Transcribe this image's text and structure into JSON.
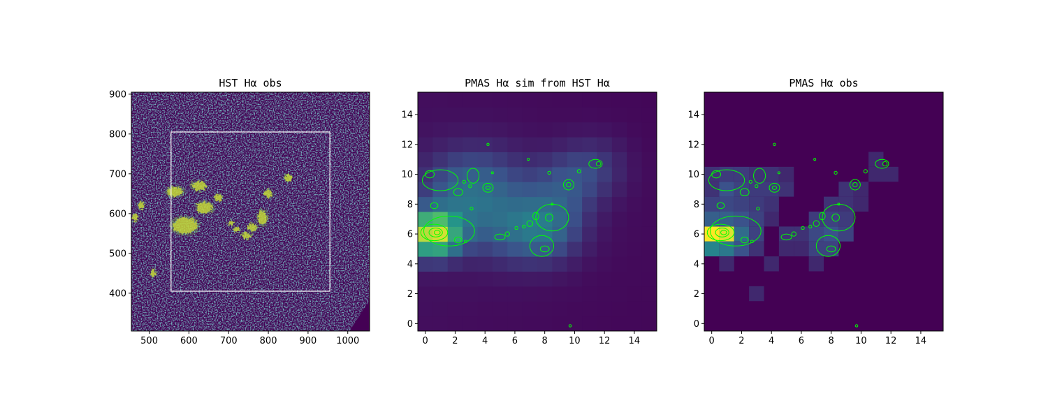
{
  "colors": {
    "colormap": "viridis",
    "contour": "#00ff00",
    "box": "#ffffff",
    "dark": "#440154",
    "bright": "#fde725"
  },
  "chart_data": [
    {
      "type": "heatmap",
      "title": "HST Hα obs",
      "xlim": [
        455,
        1055
      ],
      "ylim": [
        305,
        905
      ],
      "xticks": [
        500,
        600,
        700,
        800,
        900,
        1000
      ],
      "yticks": [
        400,
        500,
        600,
        700,
        800,
        900
      ],
      "overlay_box": {
        "x0": 555,
        "x1": 955,
        "y0": 405,
        "y1": 805
      },
      "bright_regions": [
        {
          "x": 590,
          "y": 570,
          "rx": 38,
          "ry": 25
        },
        {
          "x": 565,
          "y": 655,
          "rx": 25,
          "ry": 15
        },
        {
          "x": 625,
          "y": 670,
          "rx": 22,
          "ry": 14
        },
        {
          "x": 640,
          "y": 615,
          "rx": 24,
          "ry": 18
        },
        {
          "x": 675,
          "y": 640,
          "rx": 12,
          "ry": 10
        },
        {
          "x": 785,
          "y": 590,
          "rx": 15,
          "ry": 22
        },
        {
          "x": 760,
          "y": 565,
          "rx": 14,
          "ry": 12
        },
        {
          "x": 745,
          "y": 545,
          "rx": 14,
          "ry": 10
        },
        {
          "x": 800,
          "y": 650,
          "rx": 12,
          "ry": 12
        },
        {
          "x": 850,
          "y": 690,
          "rx": 12,
          "ry": 10
        },
        {
          "x": 480,
          "y": 620,
          "rx": 10,
          "ry": 12
        },
        {
          "x": 465,
          "y": 590,
          "rx": 8,
          "ry": 12
        },
        {
          "x": 510,
          "y": 450,
          "rx": 8,
          "ry": 12
        },
        {
          "x": 705,
          "y": 575,
          "rx": 10,
          "ry": 7
        },
        {
          "x": 720,
          "y": 560,
          "rx": 10,
          "ry": 7
        }
      ]
    },
    {
      "type": "heatmap",
      "title": "PMAS Hα sim from HST Hα",
      "xlim": [
        -0.5,
        15.5
      ],
      "ylim": [
        -0.5,
        15.5
      ],
      "xticks": [
        0,
        2,
        4,
        6,
        8,
        10,
        12,
        14
      ],
      "yticks": [
        0,
        2,
        4,
        6,
        8,
        10,
        12,
        14
      ],
      "vmax": 1.0,
      "hot_spots": [
        {
          "x": 0.5,
          "y": 6.0,
          "amp": 0.85,
          "sx": 1.2,
          "sy": 1.0
        },
        {
          "x": 2.5,
          "y": 8.5,
          "amp": 0.2,
          "sx": 2.0,
          "sy": 2.0
        },
        {
          "x": 4.5,
          "y": 9.0,
          "amp": 0.15,
          "sx": 2.5,
          "sy": 2.0
        },
        {
          "x": 8.0,
          "y": 6.5,
          "amp": 0.28,
          "sx": 1.8,
          "sy": 1.6
        },
        {
          "x": 9.5,
          "y": 9.5,
          "amp": 0.15,
          "sx": 1.5,
          "sy": 1.5
        },
        {
          "x": 11.5,
          "y": 10.5,
          "amp": 0.12,
          "sx": 1.5,
          "sy": 1.5
        },
        {
          "x": 5.5,
          "y": 6.0,
          "amp": 0.12,
          "sx": 2.0,
          "sy": 1.5
        }
      ],
      "background_level": 0.06
    },
    {
      "type": "heatmap",
      "title": "PMAS Hα obs",
      "xlim": [
        -0.5,
        15.5
      ],
      "ylim": [
        -0.5,
        15.5
      ],
      "xticks": [
        0,
        2,
        4,
        6,
        8,
        10,
        12,
        14
      ],
      "yticks": [
        0,
        2,
        4,
        6,
        8,
        10,
        12,
        14
      ],
      "vmax": 1.0,
      "cells": [
        {
          "x": 0,
          "y": 6,
          "v": 1.0
        },
        {
          "x": 1,
          "y": 6,
          "v": 0.95
        },
        {
          "x": 0,
          "y": 5,
          "v": 0.45
        },
        {
          "x": 1,
          "y": 5,
          "v": 0.4
        },
        {
          "x": 2,
          "y": 6,
          "v": 0.35
        },
        {
          "x": 2,
          "y": 5,
          "v": 0.25
        },
        {
          "x": 0,
          "y": 7,
          "v": 0.3
        },
        {
          "x": 1,
          "y": 7,
          "v": 0.3
        },
        {
          "x": 2,
          "y": 7,
          "v": 0.25
        },
        {
          "x": 0,
          "y": 8,
          "v": 0.2
        },
        {
          "x": 1,
          "y": 8,
          "v": 0.22
        },
        {
          "x": 2,
          "y": 8,
          "v": 0.2
        },
        {
          "x": 0,
          "y": 9,
          "v": 0.15
        },
        {
          "x": 1,
          "y": 9,
          "v": 0.25
        },
        {
          "x": 2,
          "y": 9,
          "v": 0.2
        },
        {
          "x": 3,
          "y": 9,
          "v": 0.18
        },
        {
          "x": 4,
          "y": 9,
          "v": 0.18
        },
        {
          "x": 5,
          "y": 9,
          "v": 0.15
        },
        {
          "x": 1,
          "y": 10,
          "v": 0.18
        },
        {
          "x": 2,
          "y": 10,
          "v": 0.18
        },
        {
          "x": 3,
          "y": 10,
          "v": 0.15
        },
        {
          "x": 4,
          "y": 10,
          "v": 0.15
        },
        {
          "x": 5,
          "y": 10,
          "v": 0.12
        },
        {
          "x": 0,
          "y": 10,
          "v": 0.15
        },
        {
          "x": 3,
          "y": 8,
          "v": 0.18
        },
        {
          "x": 4,
          "y": 8,
          "v": 0.15
        },
        {
          "x": 3,
          "y": 7,
          "v": 0.2
        },
        {
          "x": 4,
          "y": 7,
          "v": 0.12
        },
        {
          "x": 3,
          "y": 6,
          "v": 0.2
        },
        {
          "x": 3,
          "y": 5,
          "v": 0.15
        },
        {
          "x": 1,
          "y": 4,
          "v": 0.12
        },
        {
          "x": 4,
          "y": 4,
          "v": 0.12
        },
        {
          "x": 5,
          "y": 5,
          "v": 0.12
        },
        {
          "x": 5,
          "y": 6,
          "v": 0.15
        },
        {
          "x": 6,
          "y": 6,
          "v": 0.15
        },
        {
          "x": 6,
          "y": 5,
          "v": 0.12
        },
        {
          "x": 7,
          "y": 5,
          "v": 0.2
        },
        {
          "x": 7,
          "y": 6,
          "v": 0.22
        },
        {
          "x": 7,
          "y": 7,
          "v": 0.18
        },
        {
          "x": 7,
          "y": 4,
          "v": 0.12
        },
        {
          "x": 8,
          "y": 5,
          "v": 0.2
        },
        {
          "x": 8,
          "y": 6,
          "v": 0.25
        },
        {
          "x": 8,
          "y": 7,
          "v": 0.2
        },
        {
          "x": 8,
          "y": 8,
          "v": 0.15
        },
        {
          "x": 9,
          "y": 6,
          "v": 0.2
        },
        {
          "x": 9,
          "y": 7,
          "v": 0.18
        },
        {
          "x": 9,
          "y": 8,
          "v": 0.15
        },
        {
          "x": 9,
          "y": 9,
          "v": 0.15
        },
        {
          "x": 10,
          "y": 8,
          "v": 0.12
        },
        {
          "x": 10,
          "y": 9,
          "v": 0.12
        },
        {
          "x": 11,
          "y": 10,
          "v": 0.12
        },
        {
          "x": 11,
          "y": 11,
          "v": 0.12
        },
        {
          "x": 12,
          "y": 10,
          "v": 0.12
        },
        {
          "x": 3,
          "y": 2,
          "v": 0.12
        }
      ]
    }
  ],
  "contours": [
    {
      "kind": "blob",
      "x": 0.6,
      "y": 6.1,
      "rx": 0.9,
      "ry": 0.55
    },
    {
      "kind": "blob",
      "x": 0.7,
      "y": 6.1,
      "rx": 0.45,
      "ry": 0.3
    },
    {
      "kind": "blob",
      "x": 0.8,
      "y": 6.1,
      "rx": 0.2,
      "ry": 0.15
    },
    {
      "kind": "blob",
      "x": 1.6,
      "y": 6.2,
      "rx": 1.7,
      "ry": 1.0
    },
    {
      "kind": "blob",
      "x": 1.0,
      "y": 9.6,
      "rx": 1.2,
      "ry": 0.7
    },
    {
      "kind": "blob",
      "x": 0.3,
      "y": 10.0,
      "rx": 0.3,
      "ry": 0.25
    },
    {
      "kind": "blob",
      "x": 2.2,
      "y": 8.8,
      "rx": 0.3,
      "ry": 0.25
    },
    {
      "kind": "blob",
      "x": 2.6,
      "y": 9.5,
      "rx": 0.1,
      "ry": 0.1
    },
    {
      "kind": "blob",
      "x": 3.2,
      "y": 9.9,
      "rx": 0.4,
      "ry": 0.5
    },
    {
      "kind": "blob",
      "x": 3.0,
      "y": 9.2,
      "rx": 0.1,
      "ry": 0.1
    },
    {
      "kind": "blob",
      "x": 4.2,
      "y": 9.1,
      "rx": 0.35,
      "ry": 0.3
    },
    {
      "kind": "blob",
      "x": 4.2,
      "y": 9.1,
      "rx": 0.15,
      "ry": 0.12
    },
    {
      "kind": "blob",
      "x": 4.5,
      "y": 10.1,
      "rx": 0.05,
      "ry": 0.05
    },
    {
      "kind": "blob",
      "x": 4.2,
      "y": 12.0,
      "rx": 0.08,
      "ry": 0.08
    },
    {
      "kind": "blob",
      "x": 6.9,
      "y": 11.0,
      "rx": 0.05,
      "ry": 0.05
    },
    {
      "kind": "blob",
      "x": 0.6,
      "y": 7.9,
      "rx": 0.25,
      "ry": 0.2
    },
    {
      "kind": "blob",
      "x": 3.1,
      "y": 7.7,
      "rx": 0.1,
      "ry": 0.1
    },
    {
      "kind": "blob",
      "x": 2.2,
      "y": 5.6,
      "rx": 0.25,
      "ry": 0.2
    },
    {
      "kind": "blob",
      "x": 2.7,
      "y": 5.5,
      "rx": 0.1,
      "ry": 0.08
    },
    {
      "kind": "blob",
      "x": 5.0,
      "y": 5.8,
      "rx": 0.35,
      "ry": 0.2
    },
    {
      "kind": "blob",
      "x": 5.5,
      "y": 6.0,
      "rx": 0.15,
      "ry": 0.15
    },
    {
      "kind": "blob",
      "x": 6.1,
      "y": 6.4,
      "rx": 0.1,
      "ry": 0.1
    },
    {
      "kind": "blob",
      "x": 6.6,
      "y": 6.5,
      "rx": 0.1,
      "ry": 0.1
    },
    {
      "kind": "blob",
      "x": 7.0,
      "y": 6.7,
      "rx": 0.2,
      "ry": 0.2
    },
    {
      "kind": "blob",
      "x": 7.4,
      "y": 7.2,
      "rx": 0.2,
      "ry": 0.25
    },
    {
      "kind": "blob",
      "x": 8.5,
      "y": 7.1,
      "rx": 1.1,
      "ry": 0.9
    },
    {
      "kind": "blob",
      "x": 8.3,
      "y": 7.1,
      "rx": 0.25,
      "ry": 0.25
    },
    {
      "kind": "blob",
      "x": 7.8,
      "y": 5.2,
      "rx": 0.8,
      "ry": 0.7
    },
    {
      "kind": "blob",
      "x": 8.0,
      "y": 5.0,
      "rx": 0.3,
      "ry": 0.2
    },
    {
      "kind": "blob",
      "x": 8.5,
      "y": 8.0,
      "rx": 0.05,
      "ry": 0.05
    },
    {
      "kind": "blob",
      "x": 8.3,
      "y": 10.1,
      "rx": 0.1,
      "ry": 0.1
    },
    {
      "kind": "blob",
      "x": 9.6,
      "y": 9.3,
      "rx": 0.35,
      "ry": 0.35
    },
    {
      "kind": "blob",
      "x": 9.6,
      "y": 9.3,
      "rx": 0.15,
      "ry": 0.15
    },
    {
      "kind": "blob",
      "x": 10.3,
      "y": 10.2,
      "rx": 0.12,
      "ry": 0.12
    },
    {
      "kind": "blob",
      "x": 11.4,
      "y": 10.7,
      "rx": 0.45,
      "ry": 0.3
    },
    {
      "kind": "blob",
      "x": 11.6,
      "y": 10.7,
      "rx": 0.15,
      "ry": 0.15
    },
    {
      "kind": "blob",
      "x": 9.7,
      "y": -0.15,
      "rx": 0.08,
      "ry": 0.08
    }
  ]
}
